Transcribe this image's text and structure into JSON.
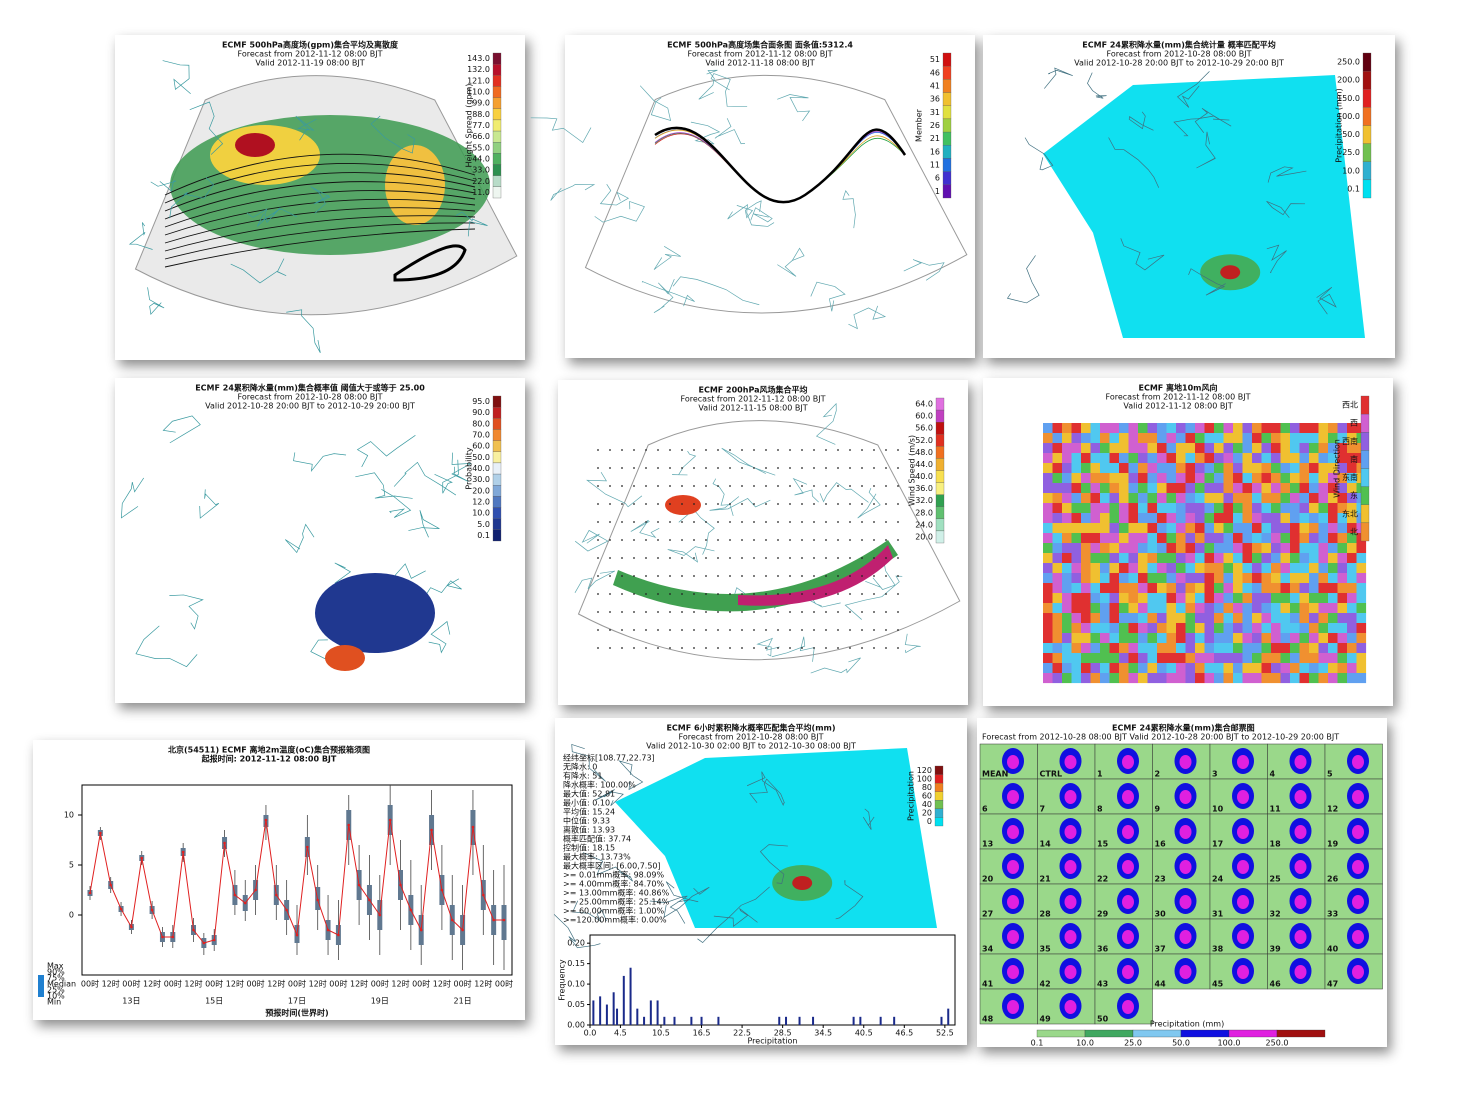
{
  "panels": [
    {
      "title": [
        "ECMF 500hPa高度场(gpm)集合平均及离散度",
        "Forecast from 2012-11-12 08:00 BJT",
        "Valid 2012-11-19 08:00 BJT"
      ],
      "colorbar": {
        "label": "Height Spread (gpm)",
        "ticks": [
          "143.0",
          "132.0",
          "121.0",
          "110.0",
          "99.0",
          "88.0",
          "77.0",
          "66.0",
          "55.0",
          "44.0",
          "33.0",
          "22.0",
          "11.0"
        ],
        "colors": [
          "#7a1030",
          "#b8102a",
          "#e23020",
          "#f06a20",
          "#f5a030",
          "#f8d040",
          "#f0ec70",
          "#c8e890",
          "#90d080",
          "#50b060",
          "#2e9050",
          "#b8dcc8",
          "#eef6f0"
        ]
      }
    },
    {
      "title": [
        "ECMF 500hPa高度场集合面条图  面条值:5312.4",
        "Forecast from 2012-11-12 08:00 BJT",
        "Valid 2012-11-18 08:00 BJT"
      ],
      "colorbar": {
        "label": "Member",
        "ticks": [
          "51",
          "46",
          "41",
          "36",
          "31",
          "26",
          "21",
          "16",
          "11",
          "6",
          "1"
        ],
        "colors": [
          "#d01010",
          "#f04020",
          "#f08020",
          "#f0c030",
          "#e0e040",
          "#a0d040",
          "#40c060",
          "#20b0c0",
          "#2070e0",
          "#4030d0",
          "#6010b0"
        ]
      }
    },
    {
      "title": [
        "ECMF 24累积降水量(mm)集合统计量 概率匹配平均",
        "Forecast from 2012-10-28 08:00 BJT",
        "Valid 2012-10-28 20:00 BJT to 2012-10-29 20:00 BJT"
      ],
      "colorbar": {
        "label": "Precipitation (mm)",
        "ticks": [
          "250.0",
          "200.0",
          "150.0",
          "100.0",
          "50.0",
          "25.0",
          "10.0",
          "0.1"
        ],
        "colors": [
          "#600010",
          "#a01010",
          "#e02020",
          "#f07020",
          "#f0c030",
          "#70c050",
          "#30b0d0",
          "#00e0f0"
        ]
      }
    },
    {
      "title": [
        "ECMF 24累积降水量(mm)集合概率值 阈值大于或等于 25.00",
        "Forecast from 2012-10-28 08:00 BJT",
        "Valid 2012-10-28 20:00 BJT to 2012-10-29 20:00 BJT"
      ],
      "colorbar": {
        "label": "Probability",
        "ticks": [
          "95.0",
          "90.0",
          "80.0",
          "70.0",
          "60.0",
          "50.0",
          "40.0",
          "30.0",
          "20.0",
          "12.0",
          "10.0",
          "5.0",
          "0.1"
        ],
        "colors": [
          "#801010",
          "#c02020",
          "#e05020",
          "#f08830",
          "#f0c050",
          "#f8f0a0",
          "#e8f0f8",
          "#b0d0e8",
          "#80a8d8",
          "#5078c0",
          "#3050b0",
          "#203890",
          "#102070"
        ]
      }
    },
    {
      "title": [
        "ECMF 200hPa风场集合平均",
        "Forecast from 2012-11-12 08:00 BJT",
        "Valid 2012-11-15 08:00 BJT"
      ],
      "colorbar": {
        "label": "Wind Speed (m/s)",
        "ticks": [
          "64.0",
          "60.0",
          "56.0",
          "52.0",
          "48.0",
          "44.0",
          "40.0",
          "36.0",
          "32.0",
          "28.0",
          "24.0",
          "20.0"
        ],
        "colors": [
          "#e070e0",
          "#c040c0",
          "#c01010",
          "#e03020",
          "#f07020",
          "#f0b030",
          "#f8e050",
          "#f8f080",
          "#30a050",
          "#60c070",
          "#a0e0c0",
          "#d0f0e8"
        ]
      }
    },
    {
      "title": [
        "ECMF 离地10m风向",
        "Forecast from 2012-11-12 08:00 BJT",
        "Valid 2012-11-12 08:00 BJT"
      ],
      "colorbar": {
        "label": "Wind Direction",
        "ticks": [
          "西北",
          "西",
          "西南",
          "南",
          "东南",
          "东",
          "东北",
          "北"
        ],
        "colors": [
          "#e03030",
          "#d060d0",
          "#9060e0",
          "#60a0f0",
          "#50c8f0",
          "#50c050",
          "#f0c030",
          "#f09030"
        ]
      }
    },
    {
      "title": [
        "北京(54511) ECMF 离地2m温度(oC)集合预报箱须图",
        "起报时间: 2012-11-12 08:00 BJT"
      ],
      "chart": {
        "type": "box",
        "x_label": "预报时间(世界时)",
        "categories": [
          "00时",
          null,
          "12时",
          null,
          "00时",
          null,
          "12时",
          null,
          "00时",
          null,
          "12时",
          null,
          "00时",
          null,
          "12时",
          null,
          "00时",
          null,
          "12时",
          null,
          "00时",
          null,
          "12时",
          null,
          "00时",
          null,
          "12时",
          null,
          "00时",
          null,
          "12时",
          null,
          "00时",
          null,
          "12时",
          null,
          "00时",
          null,
          "12时",
          null,
          "00时"
        ],
        "day_labels": [
          {
            "at": 4,
            "label": "13日"
          },
          {
            "at": 12,
            "label": "15日"
          },
          {
            "at": 20,
            "label": "17日"
          },
          {
            "at": 28,
            "label": "19日"
          },
          {
            "at": 36,
            "label": "21日"
          }
        ],
        "median": [
          2.2,
          8.2,
          3,
          0.6,
          -1.2,
          5.7,
          0.5,
          -2.2,
          -2.2,
          6.3,
          -1.5,
          -2.8,
          -2.5,
          7.2,
          2,
          1.2,
          2.5,
          9.5,
          2,
          0.5,
          -2,
          6.8,
          1.5,
          -1.5,
          -2,
          9,
          3,
          1.5,
          0,
          9.5,
          3,
          0.5,
          -1.5,
          8.5,
          2.5,
          -0.5,
          -1.5,
          8.8,
          2,
          -0.5,
          -0.5
        ],
        "q1": [
          1.9,
          7.9,
          2.6,
          0.3,
          -1.5,
          5.4,
          0.1,
          -2.7,
          -2.7,
          5.9,
          -2,
          -3.3,
          -3,
          6.6,
          1,
          0.4,
          1.5,
          8.8,
          1,
          -0.5,
          -2.8,
          5.8,
          0.5,
          -2.5,
          -3,
          7.5,
          1.5,
          0,
          -1.5,
          8,
          1.5,
          -1,
          -3,
          7,
          1,
          -2,
          -3,
          7,
          0.5,
          -2,
          -2.5
        ],
        "q3": [
          2.5,
          8.5,
          3.4,
          0.9,
          -0.9,
          6,
          0.9,
          -1.7,
          -1.7,
          6.7,
          -1,
          -2.3,
          -2,
          7.8,
          3,
          2,
          3.5,
          10,
          3,
          1.5,
          -1,
          7.8,
          2.8,
          -0.5,
          -1,
          10.5,
          4.5,
          3,
          1.5,
          11,
          4.5,
          2,
          0,
          10,
          4,
          1,
          0,
          10.5,
          3.5,
          1,
          1
        ],
        "low": [
          1.5,
          7.5,
          2.2,
          -0.1,
          -1.9,
          5,
          -0.4,
          -3.2,
          -3.3,
          5.3,
          -2.7,
          -4,
          -3.6,
          5.8,
          0,
          -0.6,
          0,
          7.5,
          -0.5,
          -2,
          -4,
          4,
          -1.5,
          -4,
          -4.5,
          5,
          -1,
          -2.5,
          -4,
          5,
          -1.5,
          -3.5,
          -5,
          4.5,
          -1.5,
          -4.5,
          -5.5,
          4,
          -2,
          -5,
          -5.5
        ],
        "high": [
          2.9,
          8.8,
          3.8,
          1.3,
          -0.5,
          6.4,
          1.4,
          -1.2,
          -1,
          7.2,
          -0.3,
          -1.8,
          -1.4,
          8.5,
          4.5,
          3.5,
          5,
          11,
          5,
          3.5,
          1,
          10,
          5,
          2,
          1.5,
          12,
          7,
          6,
          4,
          13,
          7.5,
          5.5,
          3,
          12.5,
          7,
          4,
          3,
          12.5,
          7,
          4.5,
          5
        ],
        "ylim": [
          -6,
          13
        ],
        "yticks": [
          0,
          5,
          10
        ],
        "line_color": "#e02020",
        "box_color": "#607890",
        "legend": [
          "Max",
          "90%",
          "75%",
          "Median",
          "25%",
          "10%",
          "Min"
        ]
      }
    },
    {
      "title": [
        "ECMF 6小时累积降水概率匹配集合平均(mm)",
        "Forecast from 2012-10-28 08:00 BJT",
        "Valid 2012-10-30 02:00 BJT to 2012-10-30 08:00 BJT"
      ],
      "stats": [
        "经纬坐标[108.77,22.73]",
        "无降水: 0",
        "有降水: 51",
        "降水概率: 100.00%",
        "最大值: 52.81",
        "最小值: 0.10",
        "平均值: 15.24",
        "中位值: 9.33",
        "离散值: 13.93",
        "概率匹配值: 37.74",
        "控制值: 18.15",
        "最大概率: 13.73%",
        "最大概率区间: [6.00,7.50]",
        ">=   0.01mm概率:  98.09%",
        ">=   4.00mm概率:  84.70%",
        ">= 13.00mm概率:  40.86%",
        ">= 25.00mm概率:  25.14%",
        ">= 60.00mm概率:   1.00%",
        ">=120.00mm概率:   0.00%"
      ],
      "colorbar": {
        "label": "Precipitation",
        "ticks": [
          "120",
          "100",
          "80",
          "60",
          "40",
          "20",
          "0"
        ],
        "colors": [
          "#801010",
          "#e02020",
          "#f08020",
          "#f0d030",
          "#70c050",
          "#30b0d0",
          "#00e0f0"
        ]
      },
      "chart": {
        "type": "bar",
        "x_label": "Precipitation",
        "y_label": "Frequency",
        "color": "#1a2a8a",
        "x": [
          0.5,
          1.5,
          2.5,
          3.5,
          4,
          5,
          6,
          7,
          8,
          9,
          10,
          11,
          12.5,
          15,
          16.5,
          19,
          28,
          29,
          31,
          33,
          39,
          40,
          43,
          45,
          52,
          53
        ],
        "values": [
          0.06,
          0.07,
          0.05,
          0.08,
          0.04,
          0.12,
          0.14,
          0.04,
          0.02,
          0.06,
          0.06,
          0.02,
          0.02,
          0.02,
          0.02,
          0.02,
          0.02,
          0.02,
          0.02,
          0.02,
          0.02,
          0.02,
          0.02,
          0.02,
          0.02,
          0.04
        ],
        "xlim": [
          0,
          54
        ],
        "ylim": [
          0,
          0.22
        ],
        "xticks": [
          {
            "value": 0,
            "label": "0.0"
          },
          4.5,
          10.5,
          16.5,
          22.5,
          28.5,
          34.5,
          40.5,
          46.5,
          52.5
        ],
        "yticks": [
          {
            "value": 0,
            "label": "0.00"
          },
          {
            "value": 0.05,
            "label": "0.05"
          },
          {
            "value": 0.1,
            "label": "0.10"
          },
          {
            "value": 0.15,
            "label": "0.15"
          },
          {
            "value": 0.2,
            "label": "0.20"
          }
        ]
      }
    },
    {
      "title": [
        "ECMF 24累积降水量(mm)集合邮票图",
        "Forecast from 2012-10-28 08:00 BJT    Valid 2012-10-28 20:00 BJT to 2012-10-29 20:00 BJT"
      ],
      "stamps": [
        "MEAN",
        "CTRL",
        "1",
        "2",
        "3",
        "4",
        "5",
        "6",
        "7",
        "8",
        "9",
        "10",
        "11",
        "12",
        "13",
        "14",
        "15",
        "16",
        "17",
        "18",
        "19",
        "20",
        "21",
        "22",
        "23",
        "24",
        "25",
        "26",
        "27",
        "28",
        "29",
        "30",
        "31",
        "32",
        "33",
        "34",
        "35",
        "36",
        "37",
        "38",
        "39",
        "40",
        "41",
        "42",
        "43",
        "44",
        "45",
        "46",
        "47",
        "48",
        "49",
        "50"
      ],
      "colorbar": {
        "label": "Precipitation (mm)",
        "ticks": [
          "0.1",
          "10.0",
          "25.0",
          "50.0",
          "100.0",
          "250.0"
        ],
        "colors": [
          "#9ad88a",
          "#40a860",
          "#80c8f0",
          "#1010e0",
          "#e020e0",
          "#a01010"
        ]
      }
    }
  ]
}
